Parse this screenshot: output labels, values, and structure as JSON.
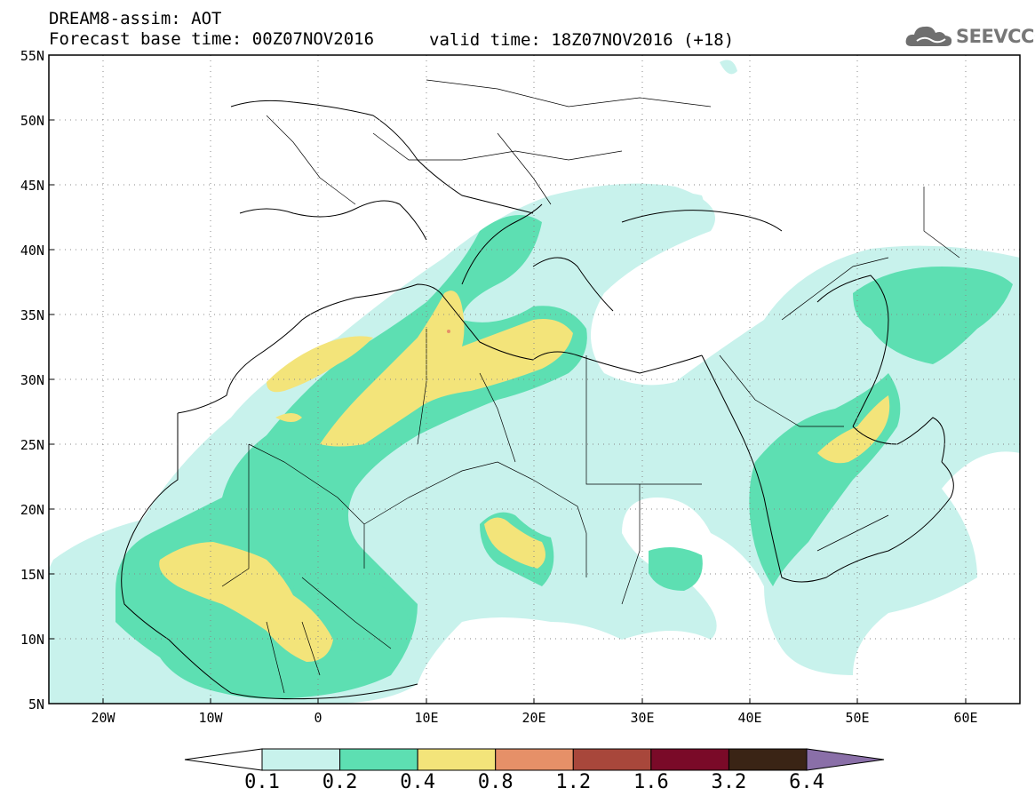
{
  "header": {
    "title": "DREAM8-assim: AOT",
    "base_time": "Forecast base time: 00Z07NOV2016",
    "valid_time": "valid time: 18Z07NOV2016 (+18)",
    "logo_text": "SEEVCCC"
  },
  "map": {
    "lat_labels": [
      "55N",
      "50N",
      "45N",
      "40N",
      "35N",
      "30N",
      "25N",
      "20N",
      "15N",
      "10N",
      "5N"
    ],
    "lon_labels": [
      "20W",
      "10W",
      "0",
      "10E",
      "20E",
      "30E",
      "40E",
      "50E",
      "60E"
    ],
    "lon_range": [
      -25,
      65
    ],
    "lat_range": [
      5,
      55
    ]
  },
  "colorbar": {
    "levels": [
      "0.1",
      "0.2",
      "0.4",
      "0.8",
      "1.2",
      "1.6",
      "3.2",
      "6.4"
    ],
    "colors": [
      "#ffffff",
      "#c8f2ec",
      "#5ddfb2",
      "#f3e47a",
      "#e69068",
      "#a8473b",
      "#7a0a28",
      "#3a2415",
      "#8a6fa8"
    ]
  }
}
